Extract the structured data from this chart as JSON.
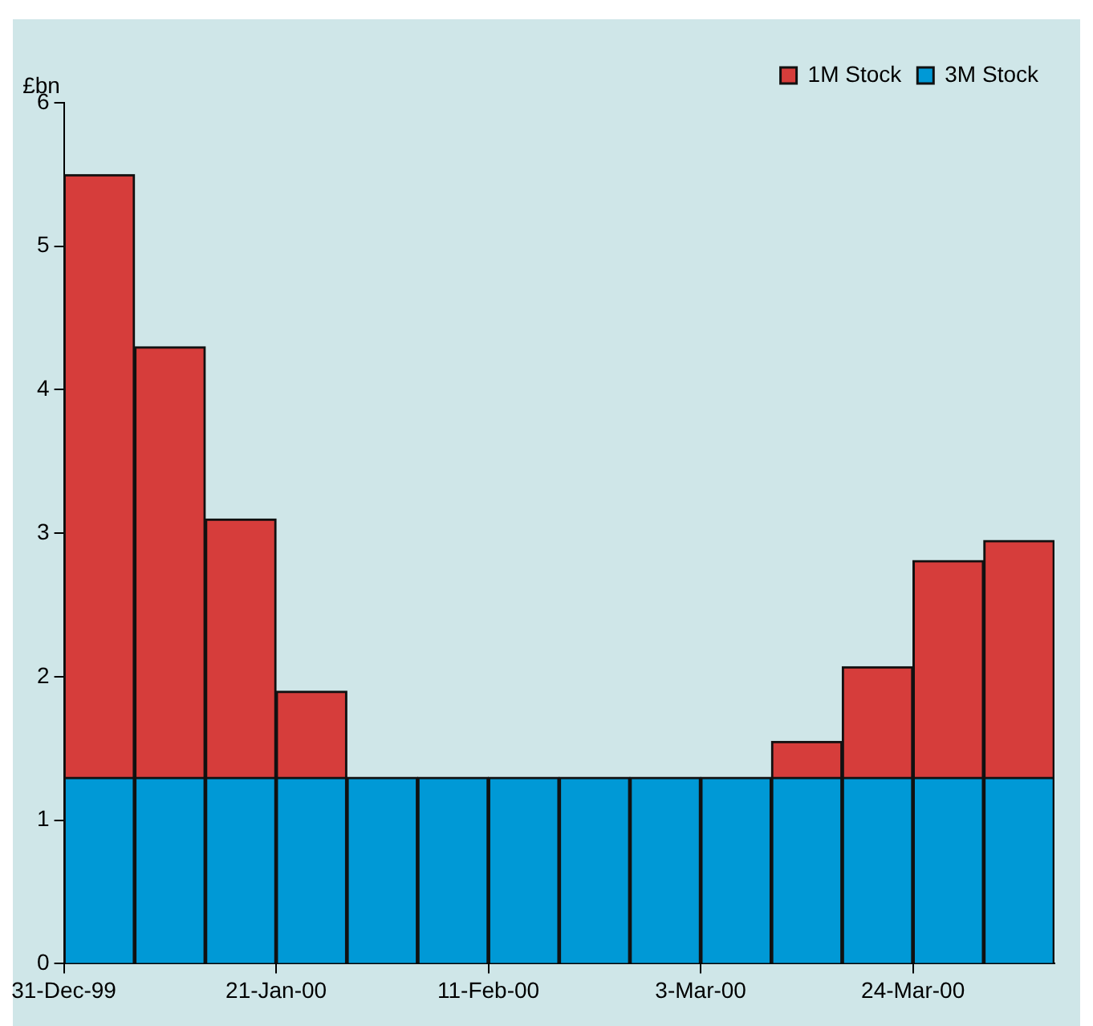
{
  "chart_data": {
    "type": "bar",
    "stacked": true,
    "ylabel": "£bn",
    "categories": [
      "31-Dec-99",
      null,
      null,
      "21-Jan-00",
      null,
      null,
      "11-Feb-00",
      null,
      null,
      "3-Mar-00",
      null,
      null,
      "24-Mar-00",
      null
    ],
    "series": [
      {
        "name": "3M Stock",
        "color": "#0099d6",
        "values": [
          1.3,
          1.3,
          1.3,
          1.3,
          1.3,
          1.3,
          1.3,
          1.3,
          1.3,
          1.3,
          1.3,
          1.3,
          1.3,
          1.3
        ]
      },
      {
        "name": "1M Stock",
        "color": "#d63d3b",
        "values": [
          4.2,
          3.0,
          1.8,
          0.6,
          0,
          0,
          0,
          0,
          0,
          0,
          0.25,
          0.77,
          1.51,
          1.65
        ]
      }
    ],
    "ylim": [
      0,
      6
    ],
    "yticks": [
      0,
      1,
      2,
      3,
      4,
      5,
      6
    ],
    "grid": false,
    "legend": "top right"
  }
}
